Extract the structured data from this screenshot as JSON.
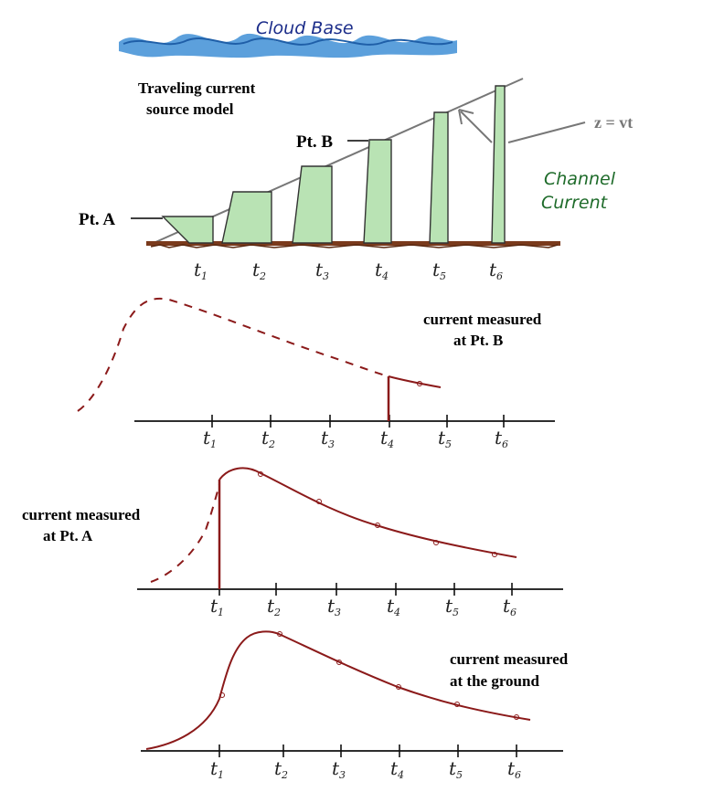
{
  "labels": {
    "cloud_base": "Cloud Base",
    "model_title_line1": "Traveling current",
    "model_title_line2": "source model",
    "pt_a": "Pt. A",
    "pt_b": "Pt. B",
    "z_eq": "z = vt",
    "channel_line1": "Channel",
    "channel_line2": "Current",
    "panel1_line1": "current measured",
    "panel1_line2": "at Pt. B",
    "panel2_line1": "current measured",
    "panel2_line2": "at Pt. A",
    "panel3_line1": "current measured",
    "panel3_line2": "at the ground"
  },
  "time_labels": [
    {
      "main": "t",
      "sub": "1"
    },
    {
      "main": "t",
      "sub": "2"
    },
    {
      "main": "t",
      "sub": "3"
    },
    {
      "main": "t",
      "sub": "4"
    },
    {
      "main": "t",
      "sub": "5"
    },
    {
      "main": "t",
      "sub": "6"
    }
  ],
  "colors": {
    "cloud": "#3f8fd6",
    "cloud_dark": "#1f5fa8",
    "column_fill": "#b9e3b4",
    "column_stroke": "#333333",
    "ground": "#7a3a1c",
    "curve": "#8b1a1a",
    "annotation": "#777777",
    "channel_text": "#1e6b2a",
    "cloud_text": "#1c2d8a"
  }
}
